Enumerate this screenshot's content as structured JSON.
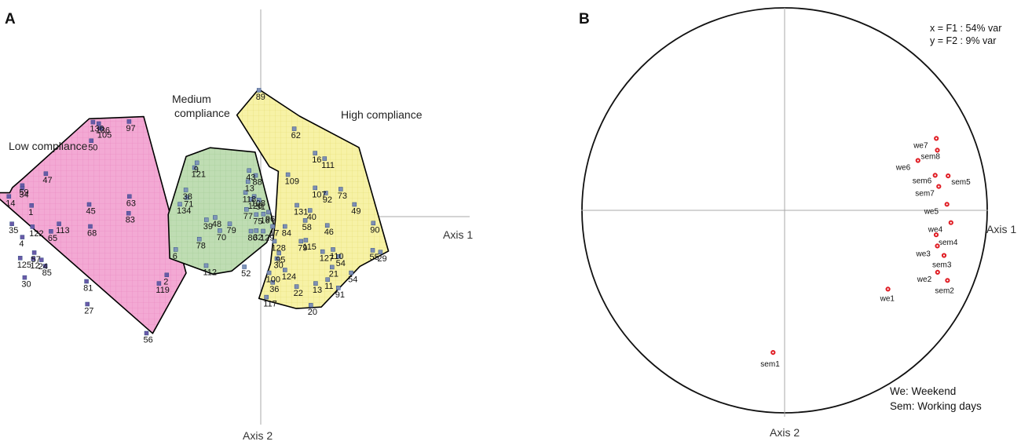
{
  "chart_data": [
    {
      "panel": "A",
      "type": "scatter",
      "xlabel": "Axis 1",
      "ylabel": "Axis 2",
      "colors": {
        "low": "#f3a9d4",
        "medium": "#bfddb3",
        "high": "#f7f2a6",
        "marker_low": "#6a5aa8",
        "marker_medium": "#8096b9",
        "marker_high": "#7f8fb4",
        "marker_edge": "#2f4e85"
      },
      "groups": [
        {
          "key": "low",
          "name": "Low compliance",
          "points": [
            {
              "id": "130",
              "x": -5.62,
              "y": 3.65
            },
            {
              "id": "136",
              "x": -5.43,
              "y": 3.59
            },
            {
              "id": "105",
              "x": -5.37,
              "y": 3.41
            },
            {
              "id": "97",
              "x": -4.41,
              "y": 3.67
            },
            {
              "id": "50",
              "x": -5.68,
              "y": 2.93
            },
            {
              "id": "47",
              "x": -7.2,
              "y": 1.66
            },
            {
              "id": "59",
              "x": -7.99,
              "y": 1.2
            },
            {
              "id": "34",
              "x": -7.99,
              "y": 1.1
            },
            {
              "id": "14",
              "x": -8.44,
              "y": 0.78
            },
            {
              "id": "1",
              "x": -7.68,
              "y": 0.43
            },
            {
              "id": "45",
              "x": -5.75,
              "y": 0.47
            },
            {
              "id": "63",
              "x": -4.4,
              "y": 0.78
            },
            {
              "id": "83",
              "x": -4.43,
              "y": 0.13
            },
            {
              "id": "35",
              "x": -8.34,
              "y": -0.28
            },
            {
              "id": "122",
              "x": -7.65,
              "y": -0.39
            },
            {
              "id": "113",
              "x": -6.76,
              "y": -0.28
            },
            {
              "id": "68",
              "x": -5.71,
              "y": -0.38
            },
            {
              "id": "65",
              "x": -7.03,
              "y": -0.57
            },
            {
              "id": "4",
              "x": -7.99,
              "y": -0.79
            },
            {
              "id": "125",
              "x": -8.06,
              "y": -1.6
            },
            {
              "id": "57",
              "x": -7.59,
              "y": -1.39
            },
            {
              "id": "24",
              "x": -7.35,
              "y": -1.67
            },
            {
              "id": "12",
              "x": -7.62,
              "y": -1.63
            },
            {
              "id": "85",
              "x": -7.22,
              "y": -1.91
            },
            {
              "id": "30",
              "x": -7.91,
              "y": -2.35
            },
            {
              "id": "81",
              "x": -5.84,
              "y": -2.5
            },
            {
              "id": "27",
              "x": -5.81,
              "y": -3.38
            },
            {
              "id": "2",
              "x": -3.15,
              "y": -2.25
            },
            {
              "id": "119",
              "x": -3.41,
              "y": -2.58
            },
            {
              "id": "56",
              "x": -3.83,
              "y": -4.5
            }
          ],
          "hull": [
            [
              -5.75,
              3.78
            ],
            [
              -3.92,
              3.86
            ],
            [
              -2.5,
              -2.18
            ],
            [
              -3.62,
              -4.51
            ],
            [
              -8.99,
              0.92
            ],
            [
              -8.41,
              0.92
            ],
            [
              -8.32,
              1.12
            ],
            [
              -7.97,
              1.47
            ]
          ]
        },
        {
          "key": "medium",
          "name": "Medium compliance",
          "points": [
            {
              "id": "9",
              "x": -2.14,
              "y": 2.08
            },
            {
              "id": "121",
              "x": -2.22,
              "y": 1.89
            },
            {
              "id": "43",
              "x": -0.39,
              "y": 1.78
            },
            {
              "id": "88",
              "x": -0.17,
              "y": 1.59
            },
            {
              "id": "13",
              "x": -0.43,
              "y": 1.35
            },
            {
              "id": "38",
              "x": -2.51,
              "y": 1.03
            },
            {
              "id": "71",
              "x": -2.47,
              "y": 0.74
            },
            {
              "id": "118",
              "x": -0.51,
              "y": 0.93
            },
            {
              "id": "108",
              "x": -0.22,
              "y": 0.78
            },
            {
              "id": "126",
              "x": -0.32,
              "y": 0.67
            },
            {
              "id": "51",
              "x": -0.06,
              "y": 0.64
            },
            {
              "id": "134",
              "x": -2.71,
              "y": 0.48
            },
            {
              "id": "77",
              "x": -0.48,
              "y": 0.28
            },
            {
              "id": "75",
              "x": -0.15,
              "y": 0.08
            },
            {
              "id": "16",
              "x": 0.09,
              "y": 0.1
            },
            {
              "id": "39",
              "x": -1.82,
              "y": -0.12
            },
            {
              "id": "48",
              "x": -1.53,
              "y": -0.03
            },
            {
              "id": "79",
              "x": -1.04,
              "y": -0.28
            },
            {
              "id": "70",
              "x": -1.37,
              "y": -0.54
            },
            {
              "id": "86",
              "x": -0.33,
              "y": -0.56
            },
            {
              "id": "32",
              "x": -0.15,
              "y": -0.54
            },
            {
              "id": "129",
              "x": 0.08,
              "y": -0.56
            },
            {
              "id": "78",
              "x": -2.06,
              "y": -0.87
            },
            {
              "id": "6",
              "x": -2.85,
              "y": -1.27
            },
            {
              "id": "112",
              "x": -1.83,
              "y": -1.89
            },
            {
              "id": "52",
              "x": -0.55,
              "y": -1.94
            }
          ],
          "hull": [
            [
              -1.7,
              2.66
            ],
            [
              -0.19,
              2.49
            ],
            [
              0.44,
              -0.33
            ],
            [
              0.2,
              -1.0
            ],
            [
              -0.97,
              -2.1
            ],
            [
              -1.6,
              -2.22
            ],
            [
              -3.05,
              -1.61
            ],
            [
              -3.1,
              0.08
            ],
            [
              -2.5,
              2.32
            ]
          ]
        },
        {
          "key": "high",
          "name": "High compliance",
          "points": [
            {
              "id": "89",
              "x": -0.06,
              "y": 4.88
            },
            {
              "id": "62",
              "x": 1.12,
              "y": 3.39
            },
            {
              "id": "16",
              "x": 1.82,
              "y": 2.45
            },
            {
              "id": "111",
              "x": 2.14,
              "y": 2.24
            },
            {
              "id": "109",
              "x": 0.91,
              "y": 1.62
            },
            {
              "id": "107",
              "x": 1.82,
              "y": 1.11
            },
            {
              "id": "92",
              "x": 2.18,
              "y": 0.91
            },
            {
              "id": "73",
              "x": 2.68,
              "y": 1.06
            },
            {
              "id": "131",
              "x": 1.21,
              "y": 0.44
            },
            {
              "id": "96",
              "x": 0.26,
              "y": 0.17
            },
            {
              "id": "40",
              "x": 1.65,
              "y": 0.24
            },
            {
              "id": "49",
              "x": 3.14,
              "y": 0.47
            },
            {
              "id": "17",
              "x": 0.4,
              "y": -0.38
            },
            {
              "id": "84",
              "x": 0.81,
              "y": -0.38
            },
            {
              "id": "58",
              "x": 1.49,
              "y": -0.15
            },
            {
              "id": "46",
              "x": 2.23,
              "y": -0.34
            },
            {
              "id": "90",
              "x": 3.77,
              "y": -0.25
            },
            {
              "id": "79",
              "x": 1.35,
              "y": -0.95
            },
            {
              "id": "115",
              "x": 1.51,
              "y": -0.91
            },
            {
              "id": "128",
              "x": 0.46,
              "y": -0.95
            },
            {
              "id": "127",
              "x": 2.07,
              "y": -1.35
            },
            {
              "id": "110",
              "x": 2.42,
              "y": -1.27
            },
            {
              "id": "54",
              "x": 2.62,
              "y": -1.54
            },
            {
              "id": "55",
              "x": 3.75,
              "y": -1.3
            },
            {
              "id": "29",
              "x": 4.01,
              "y": -1.37
            },
            {
              "id": "95",
              "x": 0.61,
              "y": -1.41
            },
            {
              "id": "124",
              "x": 0.81,
              "y": -2.06
            },
            {
              "id": "100",
              "x": 0.28,
              "y": -2.17
            },
            {
              "id": "36",
              "x": 0.4,
              "y": -2.54
            },
            {
              "id": "22",
              "x": 1.2,
              "y": -2.7
            },
            {
              "id": "13",
              "x": 1.84,
              "y": -2.58
            },
            {
              "id": "11",
              "x": 2.24,
              "y": -2.43
            },
            {
              "id": "91",
              "x": 2.6,
              "y": -2.75
            },
            {
              "id": "54",
              "x": 3.03,
              "y": -2.17
            },
            {
              "id": "117",
              "x": 0.19,
              "y": -3.11
            },
            {
              "id": "20",
              "x": 1.68,
              "y": -3.42
            },
            {
              "id": "21",
              "x": 2.39,
              "y": -1.95
            },
            {
              "id": "30",
              "x": 0.54,
              "y": -1.62
            }
          ],
          "hull": [
            [
              -0.07,
              4.92
            ],
            [
              1.3,
              3.88
            ],
            [
              3.29,
              2.67
            ],
            [
              4.28,
              -1.33
            ],
            [
              3.32,
              -1.92
            ],
            [
              2.03,
              -3.49
            ],
            [
              1.19,
              -3.55
            ],
            [
              -0.06,
              -3.16
            ],
            [
              0.33,
              -1.81
            ],
            [
              0.49,
              -0.13
            ],
            [
              0.59,
              1.75
            ],
            [
              0.29,
              1.93
            ],
            [
              -0.8,
              3.92
            ]
          ]
        }
      ]
    },
    {
      "panel": "B",
      "type": "scatter",
      "subtype": "correlation circle",
      "xlabel": "Axis 1",
      "ylabel": "Axis 2",
      "xlim": [
        -1,
        1
      ],
      "ylim": [
        -1,
        1
      ],
      "variance_text": [
        "x = F1 : 54% var",
        "y = F2 : 9% var"
      ],
      "legend_text": [
        "We: Weekend",
        "Sem: Working days"
      ],
      "marker_color": "#e01e25",
      "points": [
        {
          "name": "we7",
          "x": 0.749,
          "y": 0.355
        },
        {
          "name": "sem8",
          "x": 0.754,
          "y": 0.297
        },
        {
          "name": "we6",
          "x": 0.658,
          "y": 0.246
        },
        {
          "name": "sem6",
          "x": 0.743,
          "y": 0.173
        },
        {
          "name": "sem5",
          "x": 0.807,
          "y": 0.17
        },
        {
          "name": "sem7",
          "x": 0.761,
          "y": 0.118
        },
        {
          "name": "we5",
          "x": 0.801,
          "y": 0.03
        },
        {
          "name": "we4",
          "x": 0.821,
          "y": -0.061
        },
        {
          "name": "sem4",
          "x": 0.748,
          "y": -0.121
        },
        {
          "name": "we3",
          "x": 0.754,
          "y": -0.176
        },
        {
          "name": "sem3",
          "x": 0.787,
          "y": -0.223
        },
        {
          "name": "we2",
          "x": 0.755,
          "y": -0.306
        },
        {
          "name": "sem2",
          "x": 0.804,
          "y": -0.346
        },
        {
          "name": "we1",
          "x": 0.51,
          "y": -0.389
        },
        {
          "name": "sem1",
          "x": -0.057,
          "y": -0.702
        }
      ]
    }
  ]
}
